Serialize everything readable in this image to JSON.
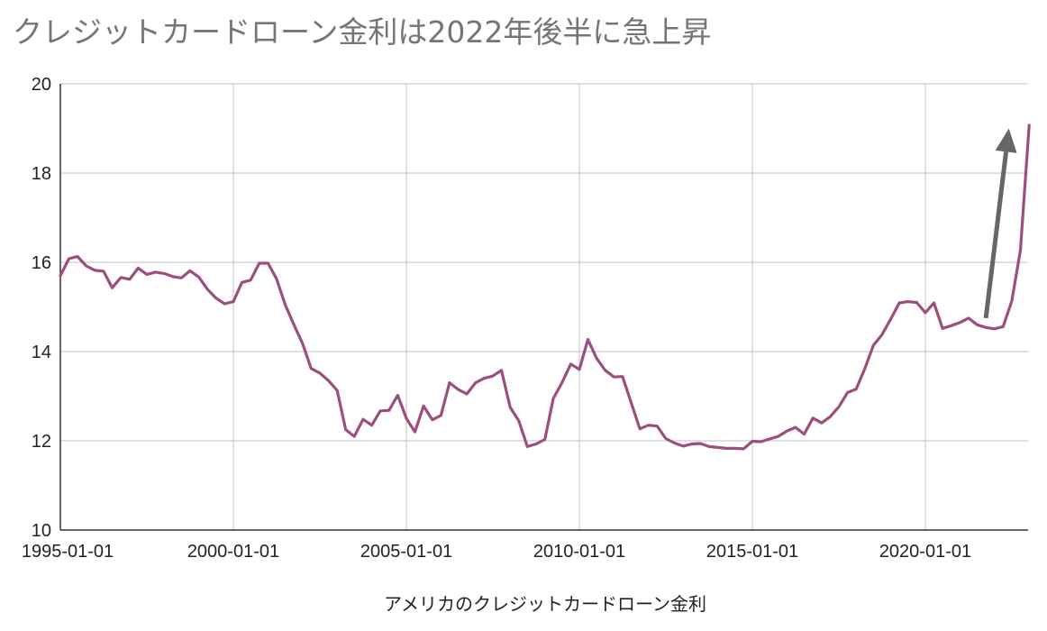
{
  "chart_data": {
    "type": "line",
    "title": "クレジットカードローン金利は2022年後半に急上昇",
    "xlabel": "アメリカのクレジットカードローン金利",
    "ylabel": "",
    "ylim": [
      10,
      20
    ],
    "yticks": [
      "10",
      "12",
      "14",
      "16",
      "18",
      "20"
    ],
    "xticks": [
      "1995-01-01",
      "2000-01-01",
      "2005-01-01",
      "2010-01-01",
      "2015-01-01",
      "2020-01-01"
    ],
    "grid": true,
    "legend": "none",
    "line_color": "#9c4f7f",
    "annotation_arrow_color": "#666666",
    "annotation_arrow": {
      "from": [
        "2021-10-01",
        14.75
      ],
      "to": [
        "2022-06-01",
        19.0
      ]
    },
    "series": [
      {
        "values": [
          [
            "1995-01-01",
            15.7
          ],
          [
            "1995-04-01",
            16.08
          ],
          [
            "1995-07-01",
            16.13
          ],
          [
            "1995-10-01",
            15.92
          ],
          [
            "1996-01-01",
            15.82
          ],
          [
            "1996-04-01",
            15.8
          ],
          [
            "1996-07-01",
            15.43
          ],
          [
            "1996-10-01",
            15.66
          ],
          [
            "1997-01-01",
            15.62
          ],
          [
            "1997-04-01",
            15.87
          ],
          [
            "1997-07-01",
            15.73
          ],
          [
            "1997-10-01",
            15.78
          ],
          [
            "1998-01-01",
            15.75
          ],
          [
            "1998-04-01",
            15.68
          ],
          [
            "1998-07-01",
            15.65
          ],
          [
            "1998-10-01",
            15.81
          ],
          [
            "1999-01-01",
            15.67
          ],
          [
            "1999-04-01",
            15.4
          ],
          [
            "1999-07-01",
            15.2
          ],
          [
            "1999-10-01",
            15.07
          ],
          [
            "2000-01-01",
            15.12
          ],
          [
            "2000-04-01",
            15.55
          ],
          [
            "2000-07-01",
            15.6
          ],
          [
            "2000-10-01",
            15.98
          ],
          [
            "2001-01-01",
            15.98
          ],
          [
            "2001-04-01",
            15.63
          ],
          [
            "2001-07-01",
            15.05
          ],
          [
            "2001-10-01",
            14.6
          ],
          [
            "2002-01-01",
            14.18
          ],
          [
            "2002-04-01",
            13.62
          ],
          [
            "2002-07-01",
            13.52
          ],
          [
            "2002-10-01",
            13.35
          ],
          [
            "2003-01-01",
            13.13
          ],
          [
            "2003-04-01",
            12.25
          ],
          [
            "2003-07-01",
            12.1
          ],
          [
            "2003-10-01",
            12.48
          ],
          [
            "2004-01-01",
            12.35
          ],
          [
            "2004-04-01",
            12.67
          ],
          [
            "2004-07-01",
            12.68
          ],
          [
            "2004-10-01",
            13.02
          ],
          [
            "2005-01-01",
            12.5
          ],
          [
            "2005-04-01",
            12.2
          ],
          [
            "2005-07-01",
            12.78
          ],
          [
            "2005-10-01",
            12.47
          ],
          [
            "2006-01-01",
            12.57
          ],
          [
            "2006-04-01",
            13.3
          ],
          [
            "2006-07-01",
            13.15
          ],
          [
            "2006-10-01",
            13.05
          ],
          [
            "2007-01-01",
            13.3
          ],
          [
            "2007-04-01",
            13.4
          ],
          [
            "2007-07-01",
            13.45
          ],
          [
            "2007-10-01",
            13.58
          ],
          [
            "2008-01-01",
            12.75
          ],
          [
            "2008-04-01",
            12.45
          ],
          [
            "2008-07-01",
            11.87
          ],
          [
            "2008-10-01",
            11.93
          ],
          [
            "2009-01-01",
            12.03
          ],
          [
            "2009-04-01",
            12.95
          ],
          [
            "2009-07-01",
            13.3
          ],
          [
            "2009-10-01",
            13.72
          ],
          [
            "2010-01-01",
            13.6
          ],
          [
            "2010-04-01",
            14.27
          ],
          [
            "2010-07-01",
            13.85
          ],
          [
            "2010-10-01",
            13.58
          ],
          [
            "2011-01-01",
            13.43
          ],
          [
            "2011-04-01",
            13.44
          ],
          [
            "2011-07-01",
            12.86
          ],
          [
            "2011-10-01",
            12.27
          ],
          [
            "2012-01-01",
            12.35
          ],
          [
            "2012-04-01",
            12.33
          ],
          [
            "2012-07-01",
            12.05
          ],
          [
            "2012-10-01",
            11.95
          ],
          [
            "2013-01-01",
            11.88
          ],
          [
            "2013-04-01",
            11.93
          ],
          [
            "2013-07-01",
            11.94
          ],
          [
            "2013-10-01",
            11.87
          ],
          [
            "2014-01-01",
            11.85
          ],
          [
            "2014-04-01",
            11.83
          ],
          [
            "2014-07-01",
            11.83
          ],
          [
            "2014-10-01",
            11.82
          ],
          [
            "2015-01-01",
            11.99
          ],
          [
            "2015-04-01",
            11.98
          ],
          [
            "2015-07-01",
            12.04
          ],
          [
            "2015-10-01",
            12.1
          ],
          [
            "2016-01-01",
            12.22
          ],
          [
            "2016-04-01",
            12.3
          ],
          [
            "2016-07-01",
            12.15
          ],
          [
            "2016-10-01",
            12.51
          ],
          [
            "2017-01-01",
            12.4
          ],
          [
            "2017-04-01",
            12.54
          ],
          [
            "2017-07-01",
            12.76
          ],
          [
            "2017-10-01",
            13.08
          ],
          [
            "2018-01-01",
            13.16
          ],
          [
            "2018-04-01",
            13.61
          ],
          [
            "2018-07-01",
            14.14
          ],
          [
            "2018-10-01",
            14.38
          ],
          [
            "2019-01-01",
            14.73
          ],
          [
            "2019-04-01",
            15.09
          ],
          [
            "2019-07-01",
            15.12
          ],
          [
            "2019-10-01",
            15.1
          ],
          [
            "2020-01-01",
            14.87
          ],
          [
            "2020-04-01",
            15.09
          ],
          [
            "2020-07-01",
            14.52
          ],
          [
            "2020-10-01",
            14.58
          ],
          [
            "2021-01-01",
            14.65
          ],
          [
            "2021-04-01",
            14.75
          ],
          [
            "2021-07-01",
            14.6
          ],
          [
            "2021-10-01",
            14.54
          ],
          [
            "2022-01-01",
            14.51
          ],
          [
            "2022-04-01",
            14.56
          ],
          [
            "2022-07-01",
            15.13
          ],
          [
            "2022-10-01",
            16.27
          ],
          [
            "2023-01-01",
            19.07
          ]
        ]
      }
    ]
  }
}
